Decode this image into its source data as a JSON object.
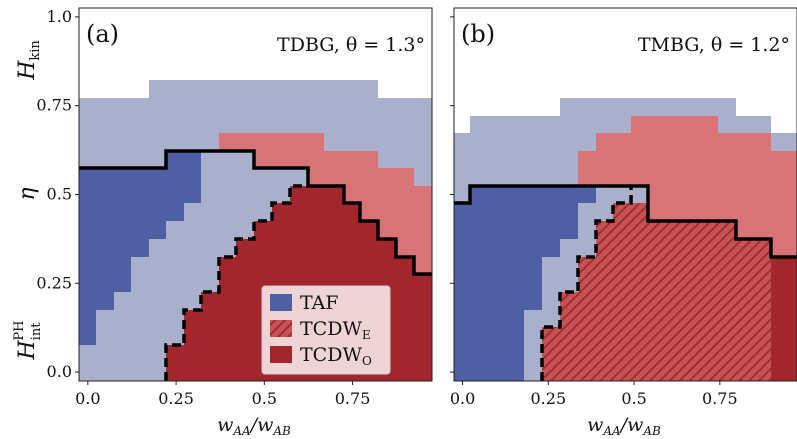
{
  "chart_data": [
    {
      "type": "heatmap",
      "panel_label": "(a)",
      "title": "TDBG, θ = 1.3°",
      "xlabel": "w_AA/w_AB",
      "xlim": [
        -0.025,
        0.975
      ],
      "ylim": [
        -0.025,
        1.025
      ],
      "x_ticks": [
        "0.0",
        "0.25",
        "0.5",
        "0.75"
      ],
      "x_tick_values": [
        0.0,
        0.25,
        0.5,
        0.75
      ],
      "y_ticks": [
        "0.0",
        "0.25",
        "0.5",
        "0.75",
        "1.0"
      ],
      "y_tick_values": [
        0.0,
        0.25,
        0.5,
        0.75,
        1.0
      ],
      "phases": {
        "TAF": {
          "color": "#4f5fa3"
        },
        "TAF_boundary_upper_eta": [
          {
            "x": [
              -0.025,
              0.025
            ],
            "eta": 0.075
          },
          {
            "x": [
              0.025,
              0.075
            ],
            "eta": 0.175
          },
          {
            "x": [
              0.075,
              0.125
            ],
            "eta": 0.225
          },
          {
            "x": [
              0.125,
              0.175
            ],
            "eta": 0.325
          },
          {
            "x": [
              0.175,
              0.225
            ],
            "eta": 0.375
          },
          {
            "x": [
              0.225,
              0.275
            ],
            "eta": 0.425
          },
          {
            "x": [
              0.275,
              0.325
            ],
            "eta": 0.475
          },
          {
            "x": [
              0.325,
              0.375
            ],
            "eta": 0.575
          }
        ],
        "TCDWO_boundary_upper_eta": [
          {
            "x": [
              0.225,
              0.275
            ],
            "eta": 0.075
          },
          {
            "x": [
              0.275,
              0.325
            ],
            "eta": 0.175
          },
          {
            "x": [
              0.325,
              0.375
            ],
            "eta": 0.225
          },
          {
            "x": [
              0.375,
              0.425
            ],
            "eta": 0.325
          },
          {
            "x": [
              0.425,
              0.475
            ],
            "eta": 0.375
          },
          {
            "x": [
              0.475,
              0.525
            ],
            "eta": 0.425
          },
          {
            "x": [
              0.525,
              0.575
            ],
            "eta": 0.475
          },
          {
            "x": [
              0.575,
              0.725
            ],
            "eta": 0.525
          },
          {
            "x": [
              0.725,
              0.775
            ],
            "eta": 0.475
          },
          {
            "x": [
              0.775,
              0.825
            ],
            "eta": 0.425
          },
          {
            "x": [
              0.825,
              0.875
            ],
            "eta": 0.375
          },
          {
            "x": [
              0.875,
              0.925
            ],
            "eta": 0.325
          },
          {
            "x": [
              0.925,
              0.975
            ],
            "eta": 0.275
          }
        ],
        "pink_region_upper_eta": [
          {
            "x": [
              0.375,
              0.575
            ],
            "eta": 0.675
          },
          {
            "x": [
              0.575,
              0.675
            ],
            "eta": 0.675
          },
          {
            "x": [
              0.675,
              0.825
            ],
            "eta": 0.625
          },
          {
            "x": [
              0.825,
              0.925
            ],
            "eta": 0.575
          },
          {
            "x": [
              0.925,
              0.975
            ],
            "eta": 0.525
          }
        ],
        "light_region_upper_eta": [
          {
            "x": [
              -0.025,
              0.225
            ],
            "eta": 0.775
          },
          {
            "x": [
              0.225,
              0.825
            ],
            "eta": 0.825
          },
          {
            "x": [
              0.825,
              0.975
            ],
            "eta": 0.775
          }
        ]
      }
    },
    {
      "type": "heatmap",
      "panel_label": "(b)",
      "title": "TMBG, θ = 1.2°",
      "xlabel": "w_AA/w_AB",
      "xlim": [
        -0.025,
        0.975
      ],
      "ylim": [
        -0.025,
        1.025
      ],
      "x_ticks": [
        "0.0",
        "0.25",
        "0.5",
        "0.75"
      ],
      "x_tick_values": [
        0.0,
        0.25,
        0.5,
        0.75
      ],
      "y_ticks": [
        "0.0",
        "0.25",
        "0.5",
        "0.75",
        "1.0"
      ],
      "y_tick_values": [
        0.0,
        0.25,
        0.5,
        0.75,
        1.0
      ],
      "phases": {
        "TAF_boundary_upper_eta": [
          {
            "x": [
              -0.025,
              0.175
            ],
            "eta": 0.275
          },
          {
            "x": [
              0.175,
              0.225
            ],
            "eta": 0.375
          },
          {
            "x": [
              0.225,
              0.275
            ],
            "eta": 0.425
          },
          {
            "x": [
              0.275,
              0.325
            ],
            "eta": 0.475
          },
          {
            "x": [
              0.325,
              0.425
            ],
            "eta": 0.525
          }
        ],
        "TCDWE_boundary_upper_eta": [
          {
            "x": [
              0.225,
              0.275
            ],
            "eta": 0.125
          },
          {
            "x": [
              0.275,
              0.325
            ],
            "eta": 0.225
          },
          {
            "x": [
              0.325,
              0.375
            ],
            "eta": 0.325
          },
          {
            "x": [
              0.375,
              0.425
            ],
            "eta": 0.425
          },
          {
            "x": [
              0.425,
              0.525
            ],
            "eta": 0.475
          },
          {
            "x": [
              0.525,
              0.575
            ],
            "eta": 0.475
          },
          {
            "x": [
              0.575,
              0.675
            ],
            "eta": 0.425
          },
          {
            "x": [
              0.675,
              0.775
            ],
            "eta": 0.375
          },
          {
            "x": [
              0.775,
              0.875
            ],
            "eta": 0.325
          },
          {
            "x": [
              0.875,
              0.975
            ],
            "eta": 0.325
          }
        ],
        "pink_region_upper_eta": [
          {
            "x": [
              0.325,
              0.425
            ],
            "eta": 0.625
          },
          {
            "x": [
              0.425,
              0.575
            ],
            "eta": 0.675
          },
          {
            "x": [
              0.575,
              0.725
            ],
            "eta": 0.725
          },
          {
            "x": [
              0.725,
              0.875
            ],
            "eta": 0.675
          },
          {
            "x": [
              0.875,
              0.975
            ],
            "eta": 0.625
          }
        ],
        "light_region_upper_eta": [
          {
            "x": [
              -0.025,
              0.025
            ],
            "eta": 0.675
          },
          {
            "x": [
              0.025,
              0.275
            ],
            "eta": 0.725
          },
          {
            "x": [
              0.275,
              0.675
            ],
            "eta": 0.775
          },
          {
            "x": [
              0.675,
              0.775
            ],
            "eta": 0.725
          },
          {
            "x": [
              0.775,
              0.975
            ],
            "eta": 0.675
          }
        ]
      }
    }
  ],
  "y_axis_labels": {
    "top": "H_kin",
    "middle": "η",
    "bottom": "H_int^PH"
  },
  "legend": [
    {
      "label": "TAF",
      "color": "#4f5fa3"
    },
    {
      "label": "TCDW_E",
      "color": "#c44a4a",
      "hatched": true
    },
    {
      "label": "TCDW_O",
      "color": "#a2262d"
    }
  ],
  "colors": {
    "light": "#a9b0cb",
    "dark_blue": "#4f5fa3",
    "pink": "#d97476",
    "dark_red": "#a2262d"
  }
}
